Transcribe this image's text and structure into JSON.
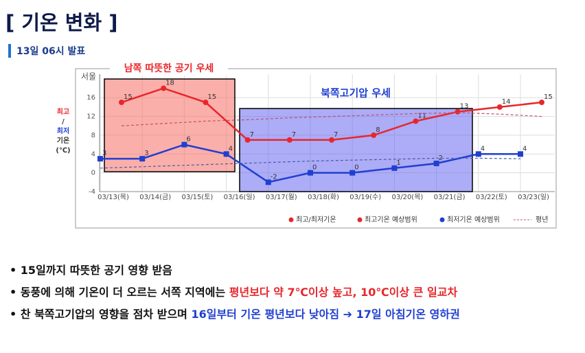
{
  "title": "[ 기온 변화 ]",
  "subtitle": "13일 06시 발표",
  "bullets": [
    {
      "parts": [
        "15일까지 따뜻한 공기 영향 받음"
      ]
    },
    {
      "parts": [
        "동풍에 의해 기온이 더 오르는 서쪽 지역에는 ",
        "평년보다 약 7℃이상 높고, 10℃이상 큰 일교차"
      ]
    },
    {
      "parts": [
        "찬 북쪽고기압의 영향을 점차 받으며 ",
        "16일부터 기온 평년보다 낮아짐",
        " ➔ 17일 아침기온 영하권"
      ]
    }
  ],
  "chart_data": {
    "type": "line",
    "station": "서울",
    "y_label": [
      "최고",
      "/",
      "최저",
      "기온",
      "(℃)"
    ],
    "categories": [
      "03/13(목)",
      "03/14(금)",
      "03/15(토)",
      "03/16(일)",
      "03/17(월)",
      "03/18(화)",
      "03/19(수)",
      "03/20(목)",
      "03/21(금)",
      "03/22(토)",
      "03/23(일)"
    ],
    "series": [
      {
        "name": "최고기온",
        "color": "#e8262b",
        "values": [
          15,
          18,
          15,
          7,
          7,
          7,
          8,
          11,
          13,
          14,
          15
        ]
      },
      {
        "name": "최저기온",
        "color": "#1f3fd0",
        "values": [
          3,
          3,
          6,
          4,
          -2,
          0,
          0,
          1,
          2,
          4,
          4
        ]
      },
      {
        "name": "평년 최고",
        "color": "#c0506a",
        "dashed": true,
        "values": [
          10,
          10.5,
          11,
          11.3,
          11.7,
          12,
          12.3,
          12.6,
          12.8,
          12.5,
          12
        ]
      },
      {
        "name": "평년 최저",
        "color": "#4a5aa8",
        "dashed": true,
        "values": [
          1,
          1.3,
          1.6,
          1.9,
          2.2,
          2.5,
          2.7,
          2.9,
          3.1,
          3.1,
          3
        ]
      }
    ],
    "legend": [
      "최고/최저기온",
      "최고기온 예상범위",
      "최저기온 예상범위",
      "평년"
    ],
    "annotations": [
      {
        "text": "남쪽 따뜻한 공기 우세",
        "color": "#e8262b"
      },
      {
        "text": "북쪽고기압 우세",
        "color": "#1f3fd0"
      }
    ],
    "ylim": [
      -4,
      21
    ],
    "yticks": [
      -4,
      0,
      4,
      8,
      12,
      16
    ],
    "grid": true
  }
}
